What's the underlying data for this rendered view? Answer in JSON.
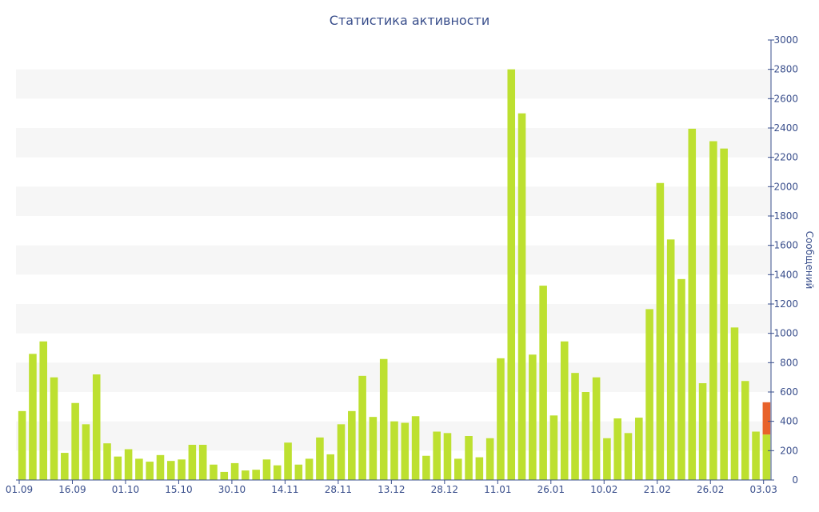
{
  "chart_data": {
    "type": "bar",
    "title": "Статистика активности",
    "xlabel": "",
    "ylabel": "Сообщений",
    "ylim": [
      0,
      3000
    ],
    "y_ticks": [
      0,
      200,
      400,
      600,
      800,
      1000,
      1200,
      1400,
      1600,
      1800,
      2000,
      2200,
      2400,
      2600,
      2800,
      3000
    ],
    "y_axis_position": "right",
    "x_tick_labels": [
      "01.09",
      "16.09",
      "01.10",
      "15.10",
      "30.10",
      "14.11",
      "28.11",
      "13.12",
      "28.12",
      "11.01",
      "26.01",
      "10.02",
      "21.02",
      "26.02",
      "03.03"
    ],
    "x_tick_every": 5,
    "grid": "alternating-bands",
    "colors": {
      "bar": "#bde030",
      "highlight": "#e8622a",
      "band": "#f6f6f6",
      "text": "#3a4f8c"
    },
    "values": [
      470,
      860,
      945,
      700,
      185,
      525,
      380,
      720,
      250,
      160,
      210,
      145,
      125,
      170,
      130,
      140,
      240,
      240,
      105,
      55,
      115,
      65,
      70,
      140,
      100,
      255,
      105,
      145,
      290,
      175,
      380,
      470,
      710,
      430,
      825,
      400,
      390,
      435,
      165,
      330,
      320,
      145,
      300,
      155,
      285,
      830,
      2800,
      2500,
      855,
      1325,
      440,
      945,
      730,
      600,
      700,
      285,
      420,
      320,
      425,
      1165,
      2025,
      1640,
      1370,
      2395,
      660,
      2310,
      2260,
      1040,
      675,
      330,
      310
    ],
    "highlight": {
      "index": 70,
      "from": 310,
      "to": 530
    }
  }
}
